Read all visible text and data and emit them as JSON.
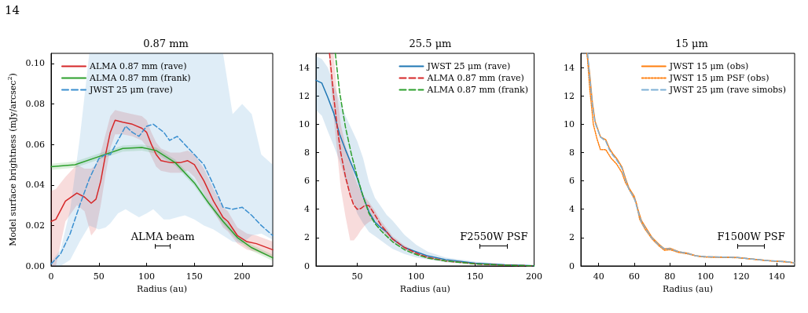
{
  "chart_data": [
    {
      "type": "line",
      "title": "0.87 mm",
      "xlabel": "Radius (au)",
      "ylabel": "Model surface brightness (mJy/arcsec$^{2}$)",
      "legend": "top left",
      "xlim": [
        0,
        232
      ],
      "xticks": [
        0,
        50,
        100,
        150,
        200
      ],
      "ylim": [
        0,
        0.105
      ],
      "yticks": [
        {
          "value": 0,
          "label": "0.00"
        },
        {
          "value": 0.02,
          "label": "0.02"
        },
        {
          "value": 0.04,
          "label": "0.04"
        },
        {
          "value": 0.06,
          "label": "0.06"
        },
        {
          "value": 0.08,
          "label": "0.08"
        },
        {
          "value": 0.1,
          "label": "0.10"
        }
      ],
      "annotations": [
        "14",
        "ALMA beam"
      ],
      "series": [
        {
          "name": "ALMA 0.87 mm (rave)",
          "color": "#d62728",
          "line_style": "solid",
          "x": [
            0,
            5,
            15,
            27,
            35,
            42,
            47,
            52,
            57,
            62,
            67,
            75,
            85,
            95,
            100,
            105,
            110,
            115,
            125,
            135,
            143,
            150,
            160,
            170,
            180,
            185,
            195,
            205,
            215,
            232
          ],
          "values": [
            0.022,
            0.023,
            0.032,
            0.036,
            0.034,
            0.031,
            0.033,
            0.042,
            0.055,
            0.066,
            0.072,
            0.071,
            0.07,
            0.068,
            0.066,
            0.06,
            0.055,
            0.052,
            0.051,
            0.051,
            0.052,
            0.05,
            0.042,
            0.032,
            0.024,
            0.022,
            0.015,
            0.012,
            0.011,
            0.008
          ],
          "lower": [
            0,
            0,
            0.022,
            0.03,
            0.027,
            0.015,
            0.018,
            0.03,
            0.045,
            0.058,
            0.065,
            0.065,
            0.064,
            0.062,
            0.059,
            0.054,
            0.049,
            0.047,
            0.046,
            0.046,
            0.047,
            0.044,
            0.036,
            0.027,
            0.019,
            0.017,
            0.011,
            0.008,
            0.007,
            0.004
          ],
          "upper": [
            0.037,
            0.038,
            0.044,
            0.05,
            0.048,
            0.048,
            0.05,
            0.056,
            0.065,
            0.074,
            0.077,
            0.076,
            0.075,
            0.074,
            0.072,
            0.066,
            0.061,
            0.058,
            0.056,
            0.056,
            0.057,
            0.055,
            0.048,
            0.038,
            0.029,
            0.027,
            0.019,
            0.016,
            0.015,
            0.012
          ]
        },
        {
          "name": "ALMA 0.87 mm (frank)",
          "color": "#2ca02c",
          "line_style": "solid",
          "x": [
            0,
            25,
            50,
            75,
            95,
            110,
            130,
            150,
            165,
            180,
            195,
            210,
            232
          ],
          "values": [
            0.049,
            0.05,
            0.054,
            0.058,
            0.0585,
            0.057,
            0.051,
            0.041,
            0.031,
            0.022,
            0.014,
            0.009,
            0.004
          ],
          "lower": [
            0.0475,
            0.0485,
            0.0525,
            0.0565,
            0.057,
            0.0555,
            0.0495,
            0.0395,
            0.0295,
            0.0205,
            0.0125,
            0.0075,
            0.0025
          ],
          "upper": [
            0.0505,
            0.0515,
            0.0555,
            0.0595,
            0.06,
            0.0585,
            0.0525,
            0.0425,
            0.0325,
            0.0235,
            0.0155,
            0.0105,
            0.0055
          ]
        },
        {
          "name": "JWST 25 μm (rave)",
          "color": "#3a8fd0",
          "line_style": "dashed",
          "x": [
            0,
            10,
            20,
            30,
            40,
            50,
            57,
            62,
            70,
            78,
            85,
            92,
            100,
            107,
            118,
            124,
            132,
            140,
            150,
            160,
            170,
            180,
            190,
            200,
            210,
            220,
            232
          ],
          "values": [
            0.001,
            0.006,
            0.016,
            0.03,
            0.043,
            0.053,
            0.055,
            0.055,
            0.062,
            0.069,
            0.066,
            0.064,
            0.069,
            0.07,
            0.066,
            0.062,
            0.064,
            0.06,
            0.055,
            0.05,
            0.04,
            0.029,
            0.028,
            0.029,
            0.025,
            0.02,
            0.015
          ],
          "lower": [
            0,
            0,
            0.003,
            0.012,
            0.02,
            0.018,
            0.019,
            0.021,
            0.026,
            0.028,
            0.026,
            0.024,
            0.026,
            0.028,
            0.023,
            0.023,
            0.024,
            0.025,
            0.023,
            0.02,
            0.018,
            0.015,
            0.012,
            0.011,
            0.015,
            0.016,
            0.013
          ],
          "upper": [
            0.002,
            0.008,
            0.028,
            0.063,
            0.105,
            0.105,
            0.105,
            0.105,
            0.105,
            0.105,
            0.105,
            0.105,
            0.105,
            0.105,
            0.105,
            0.105,
            0.105,
            0.105,
            0.105,
            0.105,
            0.105,
            0.105,
            0.075,
            0.08,
            0.075,
            0.055,
            0.05
          ]
        }
      ]
    },
    {
      "type": "line",
      "title": "25.5 μm",
      "xlabel": "Radius (au)",
      "legend": "top right",
      "xlim": [
        15,
        200
      ],
      "xticks": [
        50,
        100,
        150,
        200
      ],
      "ylim": [
        0,
        15
      ],
      "yticks": [
        0,
        2,
        4,
        6,
        8,
        10,
        12,
        14
      ],
      "annotations": [
        "F2550W PSF"
      ],
      "series": [
        {
          "name": "JWST 25 μm (rave)",
          "color": "#1f77b4",
          "line_style": "solid",
          "x": [
            15,
            20,
            25,
            30,
            35,
            40,
            45,
            50,
            55,
            60,
            65,
            70,
            75,
            80,
            90,
            100,
            110,
            125,
            150,
            175,
            200
          ],
          "values": [
            13.1,
            12.9,
            11.9,
            10.8,
            9.3,
            8.2,
            7.2,
            6.2,
            4.9,
            3.8,
            3.1,
            2.7,
            2.4,
            1.9,
            1.3,
            1,
            0.7,
            0.45,
            0.2,
            0.08,
            0.02
          ],
          "lower": [
            11,
            10.6,
            9.5,
            8.5,
            7.4,
            6,
            4.9,
            3.7,
            3,
            2.4,
            2.1,
            1.8,
            1.5,
            1.2,
            0.85,
            0.6,
            0.45,
            0.25,
            0.1,
            0.03,
            0
          ],
          "upper": [
            14.8,
            14.6,
            14,
            12.8,
            11.7,
            10.6,
            9.7,
            8.8,
            7.6,
            5.9,
            4.8,
            4.2,
            3.6,
            3.2,
            2.2,
            1.5,
            1,
            0.6,
            0.3,
            0.12,
            0.05
          ]
        },
        {
          "name": "ALMA 0.87 mm (rave)",
          "color": "#d62728",
          "line_style": "dashed",
          "x": [
            26.5,
            30,
            33,
            36,
            40,
            44,
            47,
            50,
            53,
            57,
            60,
            65,
            70,
            80,
            90,
            100,
            110,
            125,
            150,
            175,
            200
          ],
          "values": [
            15,
            12,
            9.8,
            8,
            6.3,
            5,
            4.3,
            4,
            4.05,
            4.3,
            4.25,
            3.6,
            2.9,
            1.9,
            1.3,
            0.9,
            0.6,
            0.35,
            0.15,
            0.05,
            0.01
          ],
          "lower": [
            14,
            10.5,
            8,
            5.5,
            3.5,
            1.8,
            1.8,
            2.1,
            2.5,
            2.9,
            3.1,
            3.3,
            2.6,
            1.7,
            1.15,
            0.8,
            0.5,
            0.3,
            0.12,
            0.04,
            0.005
          ],
          "upper": [
            15,
            15,
            12,
            10,
            8.5,
            7.5,
            6.5,
            5.8,
            5.3,
            4.8,
            4.5,
            3.9,
            3.2,
            2.1,
            1.45,
            1,
            0.7,
            0.4,
            0.18,
            0.06,
            0.015
          ]
        },
        {
          "name": "ALMA 0.87 mm (frank)",
          "color": "#2ca02c",
          "line_style": "dashed",
          "x": [
            31.4,
            35,
            40,
            45,
            50,
            55,
            60,
            65,
            70,
            80,
            90,
            100,
            110,
            125,
            150,
            175,
            200
          ],
          "values": [
            15,
            12.3,
            9.8,
            7.9,
            6.3,
            4.9,
            3.7,
            3,
            2.5,
            1.7,
            1.15,
            0.8,
            0.55,
            0.35,
            0.15,
            0.05,
            0.01
          ]
        }
      ]
    },
    {
      "type": "line",
      "title": "15 μm",
      "xlabel": "Radius (au)",
      "legend": "top right",
      "xlim": [
        30,
        150
      ],
      "xticks": [
        40,
        60,
        80,
        100,
        120,
        140
      ],
      "ylim": [
        0,
        15
      ],
      "yticks": [
        0,
        2,
        4,
        6,
        8,
        10,
        12,
        14
      ],
      "annotations": [
        "F1500W PSF"
      ],
      "series": [
        {
          "name": "JWST 15 μm (obs)",
          "color": "#ff7f0e",
          "line_style": "solid",
          "x": [
            33.5,
            35,
            36.5,
            38,
            41,
            44,
            46,
            48,
            50,
            53,
            55,
            57,
            60,
            62,
            64,
            67,
            70,
            74,
            77,
            80,
            85,
            90,
            95,
            100,
            110,
            118,
            125,
            135,
            145,
            150
          ],
          "values": [
            15,
            13.5,
            11.5,
            10.2,
            9.1,
            8.9,
            8.3,
            7.9,
            7.6,
            7,
            6.2,
            5.5,
            4.9,
            4,
            3.2,
            2.6,
            2,
            1.5,
            1.2,
            1.25,
            1,
            0.9,
            0.7,
            0.65,
            0.62,
            0.6,
            0.5,
            0.38,
            0.3,
            0.22
          ]
        },
        {
          "name": "JWST 15 μm PSF (obs)",
          "color": "#ff7f0e",
          "line_style": "dotted",
          "x": [
            33.5,
            35,
            37,
            39,
            41,
            44,
            47,
            50,
            53,
            55,
            58,
            61,
            63,
            66,
            70,
            74,
            77,
            80,
            85,
            90,
            95,
            100,
            110,
            118,
            125,
            135,
            145,
            150
          ],
          "values": [
            15,
            12.5,
            10,
            9,
            8.2,
            8.2,
            7.6,
            7.2,
            6.6,
            5.9,
            5.2,
            4.5,
            3.3,
            2.6,
            1.9,
            1.4,
            1.1,
            1.15,
            0.95,
            0.85,
            0.7,
            0.62,
            0.6,
            0.58,
            0.5,
            0.37,
            0.28,
            0.22
          ]
        },
        {
          "name": "JWST 25 μm (rave simobs)",
          "color": "#7fb0d6",
          "line_style": "dashed",
          "x": [
            33.8,
            35,
            36.5,
            38,
            41,
            44,
            46,
            48,
            50,
            53,
            55,
            57,
            60,
            62,
            64,
            67,
            70,
            74,
            77,
            80,
            85,
            90,
            95,
            100,
            110,
            118,
            125,
            135,
            145,
            150
          ],
          "values": [
            15,
            13.3,
            11.3,
            10.1,
            9.1,
            8.8,
            8.2,
            7.8,
            7.5,
            6.9,
            6.1,
            5.4,
            4.8,
            3.9,
            3.1,
            2.5,
            1.95,
            1.45,
            1.2,
            1.2,
            1,
            0.88,
            0.7,
            0.65,
            0.62,
            0.6,
            0.5,
            0.38,
            0.3,
            0.22
          ]
        }
      ]
    }
  ]
}
